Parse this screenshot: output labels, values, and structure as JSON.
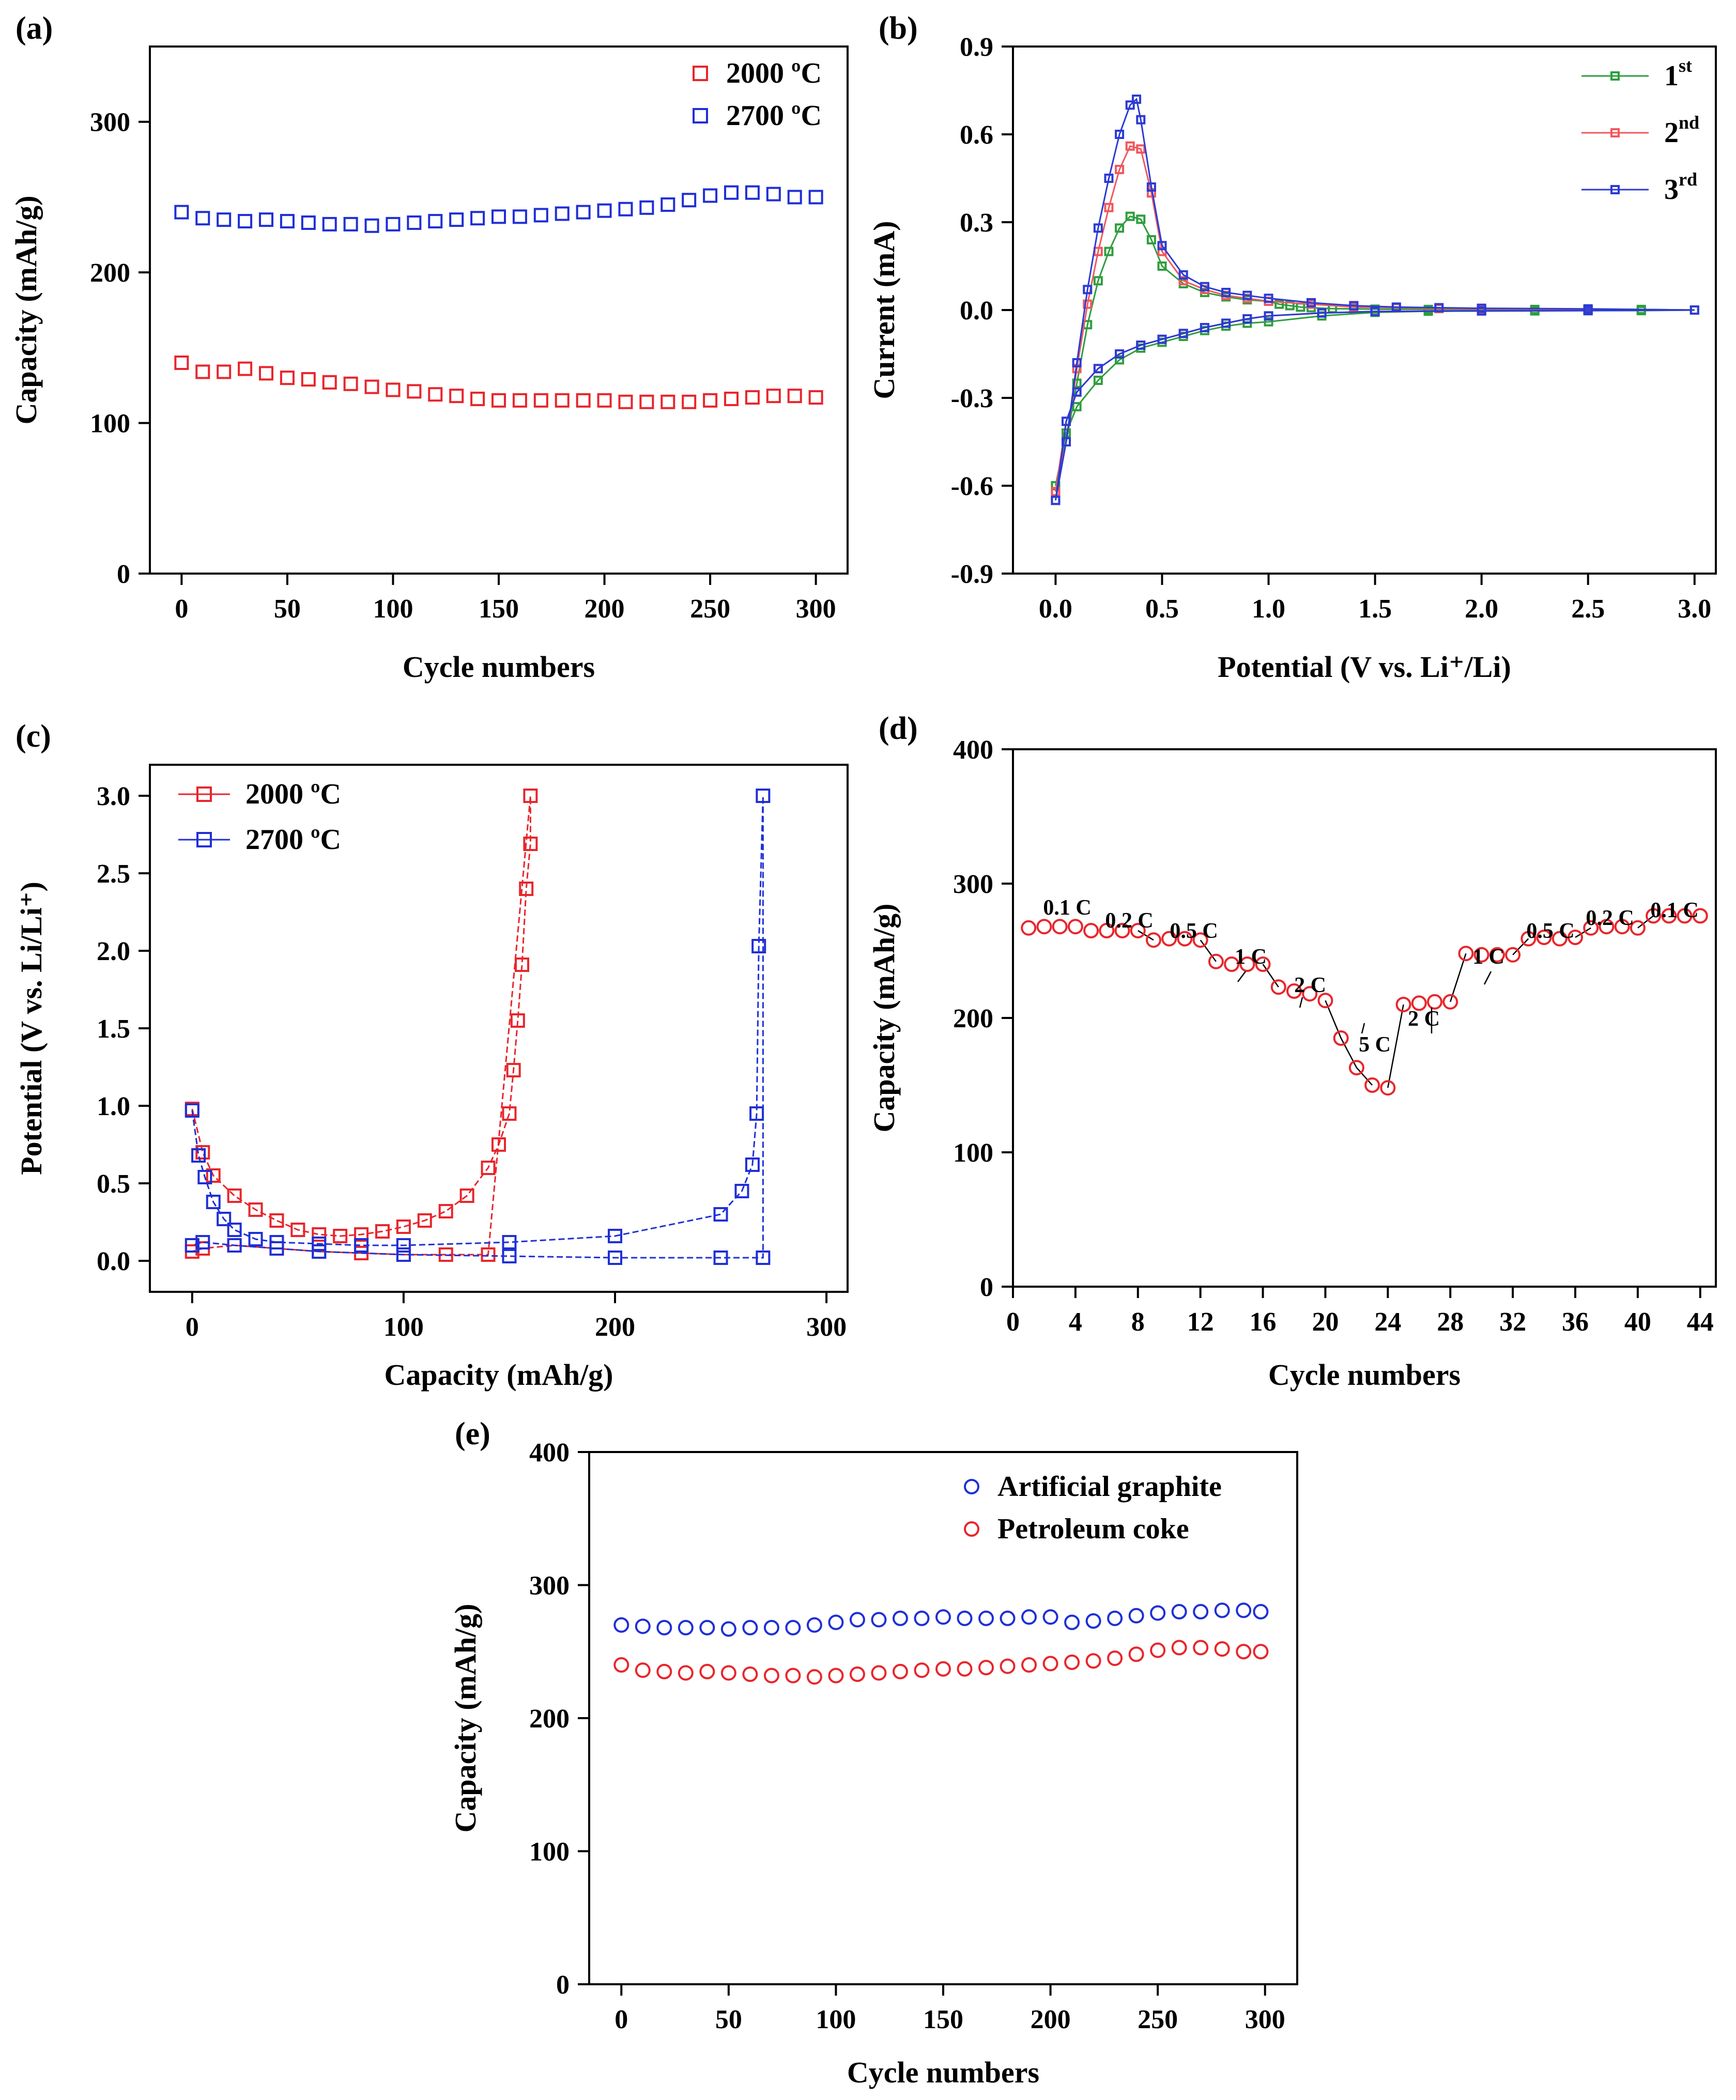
{
  "chart_data": [
    {
      "panel": "(a)",
      "type": "scatter",
      "xlabel": "Cycle numbers",
      "ylabel": "Capacity (mAh/g)",
      "xlim": [
        -15,
        315
      ],
      "ylim": [
        0,
        350
      ],
      "xticks": [
        0,
        50,
        100,
        150,
        200,
        250,
        300
      ],
      "yticks": [
        0,
        100,
        200,
        300
      ],
      "legend_position": "top-right",
      "marker": "square",
      "series": [
        {
          "name": "2000 ºC",
          "color": "#e8262c",
          "x": [
            0,
            10,
            20,
            30,
            40,
            50,
            60,
            70,
            80,
            90,
            100,
            110,
            120,
            130,
            140,
            150,
            160,
            170,
            180,
            190,
            200,
            210,
            220,
            230,
            240,
            250,
            260,
            270,
            280,
            290,
            300
          ],
          "y": [
            140,
            134,
            134,
            136,
            133,
            130,
            129,
            127,
            126,
            124,
            122,
            121,
            119,
            118,
            116,
            115,
            115,
            115,
            115,
            115,
            115,
            114,
            114,
            114,
            114,
            115,
            116,
            117,
            118,
            118,
            117
          ]
        },
        {
          "name": "2700 ºC",
          "color": "#1f2fd6",
          "x": [
            0,
            10,
            20,
            30,
            40,
            50,
            60,
            70,
            80,
            90,
            100,
            110,
            120,
            130,
            140,
            150,
            160,
            170,
            180,
            190,
            200,
            210,
            220,
            230,
            240,
            250,
            260,
            270,
            280,
            290,
            300
          ],
          "y": [
            240,
            236,
            235,
            234,
            235,
            234,
            233,
            232,
            232,
            231,
            232,
            233,
            234,
            235,
            236,
            237,
            237,
            238,
            239,
            240,
            241,
            242,
            243,
            245,
            248,
            251,
            253,
            253,
            252,
            250,
            250
          ]
        }
      ]
    },
    {
      "panel": "(b)",
      "type": "line",
      "xlabel": "Potential (V vs. Li⁺/Li)",
      "ylabel": "Current (mA)",
      "xlim": [
        -0.2,
        3.1
      ],
      "ylim": [
        -0.9,
        0.9
      ],
      "xticks": [
        "0.0",
        "0.5",
        "1.0",
        "1.5",
        "2.0",
        "2.5",
        "3.0"
      ],
      "yticks": [
        "-0.9",
        "-0.6",
        "-0.3",
        "0.0",
        "0.3",
        "0.6",
        "0.9"
      ],
      "legend_position": "top-right",
      "marker": "small-square",
      "series": [
        {
          "name": "1st",
          "color": "#2e9e3e",
          "x": [
            0.0,
            0.05,
            0.1,
            0.15,
            0.2,
            0.25,
            0.3,
            0.35,
            0.4,
            0.45,
            0.5,
            0.6,
            0.7,
            0.8,
            0.9,
            1.0,
            1.05,
            1.1,
            1.15,
            1.2,
            1.3,
            1.4,
            1.5,
            1.75,
            2.0,
            2.25,
            2.5,
            2.75,
            3.0,
            2.75,
            2.5,
            2.25,
            2.0,
            1.75,
            1.5,
            1.25,
            1.0,
            0.9,
            0.8,
            0.7,
            0.6,
            0.5,
            0.4,
            0.3,
            0.2,
            0.1,
            0.05,
            0.0
          ],
          "y": [
            -0.6,
            -0.45,
            -0.25,
            -0.05,
            0.1,
            0.2,
            0.28,
            0.32,
            0.31,
            0.24,
            0.15,
            0.09,
            0.06,
            0.045,
            0.035,
            0.03,
            0.02,
            0.015,
            0.01,
            0.008,
            0.005,
            0.004,
            0.003,
            0.002,
            0.002,
            0.002,
            0.002,
            0.002,
            0.0,
            -0.002,
            -0.002,
            -0.003,
            -0.003,
            -0.004,
            -0.008,
            -0.02,
            -0.04,
            -0.045,
            -0.055,
            -0.07,
            -0.09,
            -0.11,
            -0.13,
            -0.17,
            -0.24,
            -0.33,
            -0.42,
            -0.6
          ]
        },
        {
          "name": "2nd",
          "color": "#f0585e",
          "x": [
            0.0,
            0.05,
            0.1,
            0.15,
            0.2,
            0.25,
            0.3,
            0.35,
            0.4,
            0.45,
            0.5,
            0.6,
            0.7,
            0.8,
            0.9,
            1.0,
            1.2,
            1.4,
            1.6,
            1.8,
            2.0,
            2.5,
            3.0,
            2.5,
            2.0,
            1.5,
            1.25,
            1.0,
            0.9,
            0.8,
            0.7,
            0.6,
            0.5,
            0.4,
            0.3,
            0.2,
            0.1,
            0.05,
            0.0
          ],
          "y": [
            -0.62,
            -0.45,
            -0.2,
            0.02,
            0.2,
            0.35,
            0.48,
            0.56,
            0.55,
            0.4,
            0.2,
            0.1,
            0.07,
            0.05,
            0.04,
            0.03,
            0.02,
            0.01,
            0.008,
            0.005,
            0.004,
            0.003,
            0.0,
            -0.002,
            -0.003,
            -0.005,
            -0.01,
            -0.02,
            -0.03,
            -0.045,
            -0.06,
            -0.08,
            -0.1,
            -0.12,
            -0.15,
            -0.2,
            -0.28,
            -0.38,
            -0.62
          ]
        },
        {
          "name": "3rd",
          "color": "#2b3bd4",
          "x": [
            0.0,
            0.05,
            0.1,
            0.15,
            0.2,
            0.25,
            0.3,
            0.35,
            0.38,
            0.4,
            0.45,
            0.5,
            0.6,
            0.7,
            0.8,
            0.9,
            1.0,
            1.2,
            1.4,
            1.6,
            1.8,
            2.0,
            2.5,
            3.0,
            2.5,
            2.0,
            1.5,
            1.25,
            1.0,
            0.9,
            0.8,
            0.7,
            0.6,
            0.5,
            0.4,
            0.3,
            0.2,
            0.1,
            0.05,
            0.0
          ],
          "y": [
            -0.65,
            -0.45,
            -0.18,
            0.07,
            0.28,
            0.45,
            0.6,
            0.7,
            0.72,
            0.65,
            0.42,
            0.22,
            0.12,
            0.08,
            0.06,
            0.05,
            0.04,
            0.025,
            0.015,
            0.01,
            0.008,
            0.006,
            0.004,
            0.0,
            -0.002,
            -0.003,
            -0.005,
            -0.01,
            -0.02,
            -0.03,
            -0.045,
            -0.06,
            -0.08,
            -0.1,
            -0.12,
            -0.15,
            -0.2,
            -0.28,
            -0.38,
            -0.65
          ]
        }
      ]
    },
    {
      "panel": "(c)",
      "type": "line",
      "xlabel": "Capacity (mAh/g)",
      "ylabel": "Potential (V vs. Li/Li⁺)",
      "xlim": [
        -20,
        310
      ],
      "ylim": [
        -0.2,
        3.2
      ],
      "xticks": [
        0,
        100,
        200,
        300
      ],
      "yticks": [
        "0.0",
        "0.5",
        "1.0",
        "1.5",
        "2.0",
        "2.5",
        "3.0"
      ],
      "legend_position": "top-left",
      "marker": "square",
      "series": [
        {
          "name": "2000 ºC",
          "color": "#e8262c",
          "x": [
            0,
            5,
            10,
            20,
            30,
            40,
            50,
            60,
            70,
            80,
            90,
            100,
            110,
            120,
            130,
            140,
            145,
            150,
            152,
            154,
            156,
            158,
            160,
            160,
            140,
            120,
            100,
            80,
            60,
            40,
            20,
            5,
            0
          ],
          "y": [
            0.98,
            0.7,
            0.55,
            0.42,
            0.33,
            0.26,
            0.2,
            0.17,
            0.16,
            0.17,
            0.19,
            0.22,
            0.26,
            0.32,
            0.42,
            0.6,
            0.75,
            0.95,
            1.23,
            1.55,
            1.91,
            2.4,
            2.69,
            3.0,
            0.04,
            0.04,
            0.04,
            0.05,
            0.06,
            0.08,
            0.1,
            0.08,
            0.06
          ]
        },
        {
          "name": "2700 ºC",
          "color": "#1f2fd6",
          "x": [
            0,
            3,
            6,
            10,
            15,
            20,
            30,
            40,
            60,
            80,
            100,
            150,
            200,
            250,
            260,
            265,
            267,
            268,
            270,
            270,
            250,
            200,
            150,
            100,
            60,
            40,
            20,
            5,
            0
          ],
          "y": [
            0.97,
            0.68,
            0.54,
            0.38,
            0.27,
            0.2,
            0.14,
            0.12,
            0.11,
            0.1,
            0.1,
            0.12,
            0.16,
            0.3,
            0.45,
            0.62,
            0.95,
            2.03,
            3.0,
            0.02,
            0.02,
            0.02,
            0.03,
            0.04,
            0.06,
            0.08,
            0.1,
            0.12,
            0.1
          ]
        }
      ]
    },
    {
      "panel": "(d)",
      "type": "scatter",
      "xlabel": "Cycle numbers",
      "ylabel": "Capacity (mAh/g)",
      "xlim": [
        0,
        45
      ],
      "ylim": [
        0,
        400
      ],
      "xticks": [
        0,
        4,
        8,
        12,
        16,
        20,
        24,
        28,
        32,
        36,
        40,
        44
      ],
      "yticks": [
        0,
        100,
        200,
        300,
        400
      ],
      "marker": "circle",
      "series": [
        {
          "name": "",
          "color": "#e8262c",
          "x": [
            1,
            2,
            3,
            4,
            5,
            6,
            7,
            8,
            9,
            10,
            11,
            12,
            13,
            14,
            15,
            16,
            17,
            18,
            19,
            20,
            21,
            22,
            23,
            24,
            25,
            26,
            27,
            28,
            29,
            30,
            31,
            32,
            33,
            34,
            35,
            36,
            37,
            38,
            39,
            40,
            41,
            42,
            43,
            44
          ],
          "y": [
            267,
            268,
            268,
            268,
            265,
            265,
            265,
            265,
            258,
            259,
            259,
            258,
            242,
            240,
            240,
            240,
            223,
            220,
            218,
            213,
            185,
            163,
            150,
            148,
            210,
            211,
            212,
            212,
            248,
            247,
            247,
            247,
            259,
            260,
            259,
            260,
            267,
            268,
            268,
            267,
            276,
            276,
            276,
            276
          ]
        }
      ],
      "annotations": [
        "0.1 C",
        "0.2 C",
        "0.5 C",
        "1 C",
        "2 C",
        "5 C",
        "2 C",
        "1 C",
        "0.5 C",
        "0.2 C",
        "0.1 C"
      ]
    },
    {
      "panel": "(e)",
      "type": "scatter",
      "xlabel": "Cycle numbers",
      "ylabel": "Capacity (mAh/g)",
      "xlim": [
        -15,
        315
      ],
      "ylim": [
        0,
        400
      ],
      "xticks": [
        0,
        50,
        100,
        150,
        200,
        250,
        300
      ],
      "yticks": [
        0,
        100,
        200,
        300,
        400
      ],
      "legend_position": "top-right",
      "marker": "circle",
      "series": [
        {
          "name": "Artificial graphite",
          "color": "#1f2fd6",
          "x": [
            0,
            10,
            20,
            30,
            40,
            50,
            60,
            70,
            80,
            90,
            100,
            110,
            120,
            130,
            140,
            150,
            160,
            170,
            180,
            190,
            200,
            210,
            220,
            230,
            240,
            250,
            260,
            270,
            280,
            290,
            298
          ],
          "y": [
            270,
            269,
            268,
            268,
            268,
            267,
            268,
            268,
            268,
            270,
            272,
            274,
            274,
            275,
            275,
            276,
            275,
            275,
            275,
            276,
            276,
            272,
            273,
            275,
            277,
            279,
            280,
            280,
            281,
            281,
            280
          ]
        },
        {
          "name": "Petroleum coke",
          "color": "#e8262c",
          "x": [
            0,
            10,
            20,
            30,
            40,
            50,
            60,
            70,
            80,
            90,
            100,
            110,
            120,
            130,
            140,
            150,
            160,
            170,
            180,
            190,
            200,
            210,
            220,
            230,
            240,
            250,
            260,
            270,
            280,
            290,
            298
          ],
          "y": [
            240,
            236,
            235,
            234,
            235,
            234,
            233,
            232,
            232,
            231,
            232,
            233,
            234,
            235,
            236,
            237,
            237,
            238,
            239,
            240,
            241,
            242,
            243,
            245,
            248,
            251,
            253,
            253,
            252,
            250,
            250
          ]
        }
      ]
    }
  ]
}
